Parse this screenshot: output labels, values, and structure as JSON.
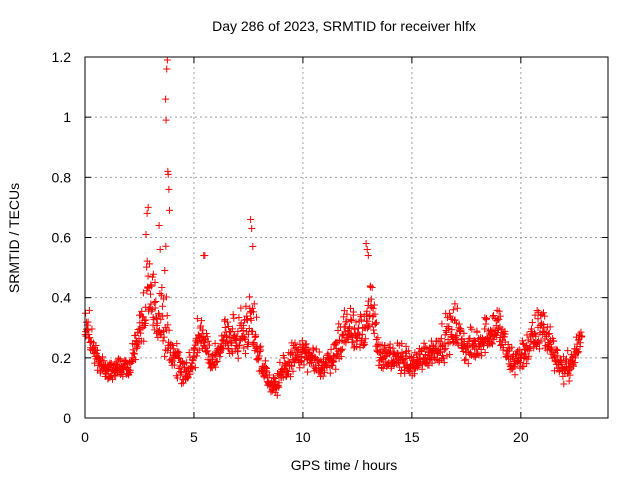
{
  "chart_data": {
    "type": "scatter",
    "title": "Day 286 of 2023, SRMTID for receiver hlfx",
    "xlabel": "GPS time / hours",
    "ylabel": "SRMTID / TECUs",
    "xlim": [
      0,
      24
    ],
    "ylim": [
      0,
      1.2
    ],
    "x_ticks": [
      0,
      5,
      10,
      15,
      20
    ],
    "x_tick_labels": [
      "0",
      "5",
      "10",
      "15",
      "20"
    ],
    "y_ticks": [
      0,
      0.2,
      0.4,
      0.6,
      0.8,
      1.0,
      1.2
    ],
    "y_tick_labels": [
      "0",
      "0.2",
      "0.4",
      "0.6",
      "0.8",
      "1",
      "1.2"
    ],
    "grid": true,
    "marker": "+",
    "series_color": "#ff0000",
    "anchor_points": {
      "x": [
        0.0,
        0.2,
        0.5,
        0.8,
        1.2,
        1.6,
        2.0,
        2.4,
        2.7,
        2.9,
        3.2,
        3.5,
        3.7,
        3.8,
        4.0,
        4.3,
        4.6,
        5.0,
        5.4,
        5.8,
        6.2,
        6.6,
        7.0,
        7.4,
        7.7,
        8.0,
        8.4,
        8.8,
        9.2,
        9.6,
        10.0,
        10.5,
        11.0,
        11.5,
        12.0,
        12.4,
        12.8,
        13.1,
        13.5,
        14.0,
        14.5,
        15.0,
        15.5,
        16.0,
        16.5,
        17.0,
        17.5,
        18.0,
        18.5,
        19.0,
        19.5,
        20.0,
        20.5,
        21.0,
        21.5,
        22.0,
        22.5,
        22.8
      ],
      "y": [
        0.3,
        0.28,
        0.2,
        0.16,
        0.15,
        0.17,
        0.16,
        0.25,
        0.35,
        0.4,
        0.35,
        0.3,
        0.38,
        0.28,
        0.2,
        0.17,
        0.14,
        0.2,
        0.3,
        0.18,
        0.22,
        0.28,
        0.25,
        0.3,
        0.33,
        0.2,
        0.13,
        0.1,
        0.16,
        0.2,
        0.21,
        0.18,
        0.17,
        0.22,
        0.3,
        0.28,
        0.3,
        0.35,
        0.22,
        0.18,
        0.2,
        0.17,
        0.2,
        0.22,
        0.25,
        0.3,
        0.22,
        0.24,
        0.28,
        0.3,
        0.18,
        0.2,
        0.25,
        0.3,
        0.22,
        0.15,
        0.2,
        0.28
      ],
      "spread": [
        0.06,
        0.07,
        0.05,
        0.04,
        0.04,
        0.05,
        0.05,
        0.08,
        0.12,
        0.14,
        0.12,
        0.1,
        0.3,
        0.1,
        0.06,
        0.06,
        0.05,
        0.07,
        0.1,
        0.06,
        0.07,
        0.09,
        0.08,
        0.1,
        0.15,
        0.07,
        0.05,
        0.05,
        0.06,
        0.06,
        0.06,
        0.05,
        0.05,
        0.07,
        0.1,
        0.09,
        0.1,
        0.14,
        0.07,
        0.06,
        0.06,
        0.05,
        0.06,
        0.06,
        0.08,
        0.09,
        0.06,
        0.07,
        0.08,
        0.09,
        0.06,
        0.07,
        0.08,
        0.1,
        0.07,
        0.05,
        0.06,
        0.06
      ]
    },
    "outliers": {
      "x": [
        2.8,
        2.85,
        2.9,
        3.7,
        3.72,
        3.75,
        3.78,
        3.8,
        3.82,
        3.85,
        3.88,
        5.45,
        5.5,
        7.6,
        7.65,
        7.7,
        12.9,
        12.95,
        13.0,
        3.4,
        3.45
      ],
      "y": [
        0.61,
        0.68,
        0.7,
        1.06,
        0.99,
        1.16,
        1.19,
        0.82,
        0.81,
        0.76,
        0.69,
        0.54,
        0.54,
        0.66,
        0.63,
        0.57,
        0.58,
        0.56,
        0.54,
        0.64,
        0.56
      ]
    },
    "n_generated_points": 1400
  }
}
